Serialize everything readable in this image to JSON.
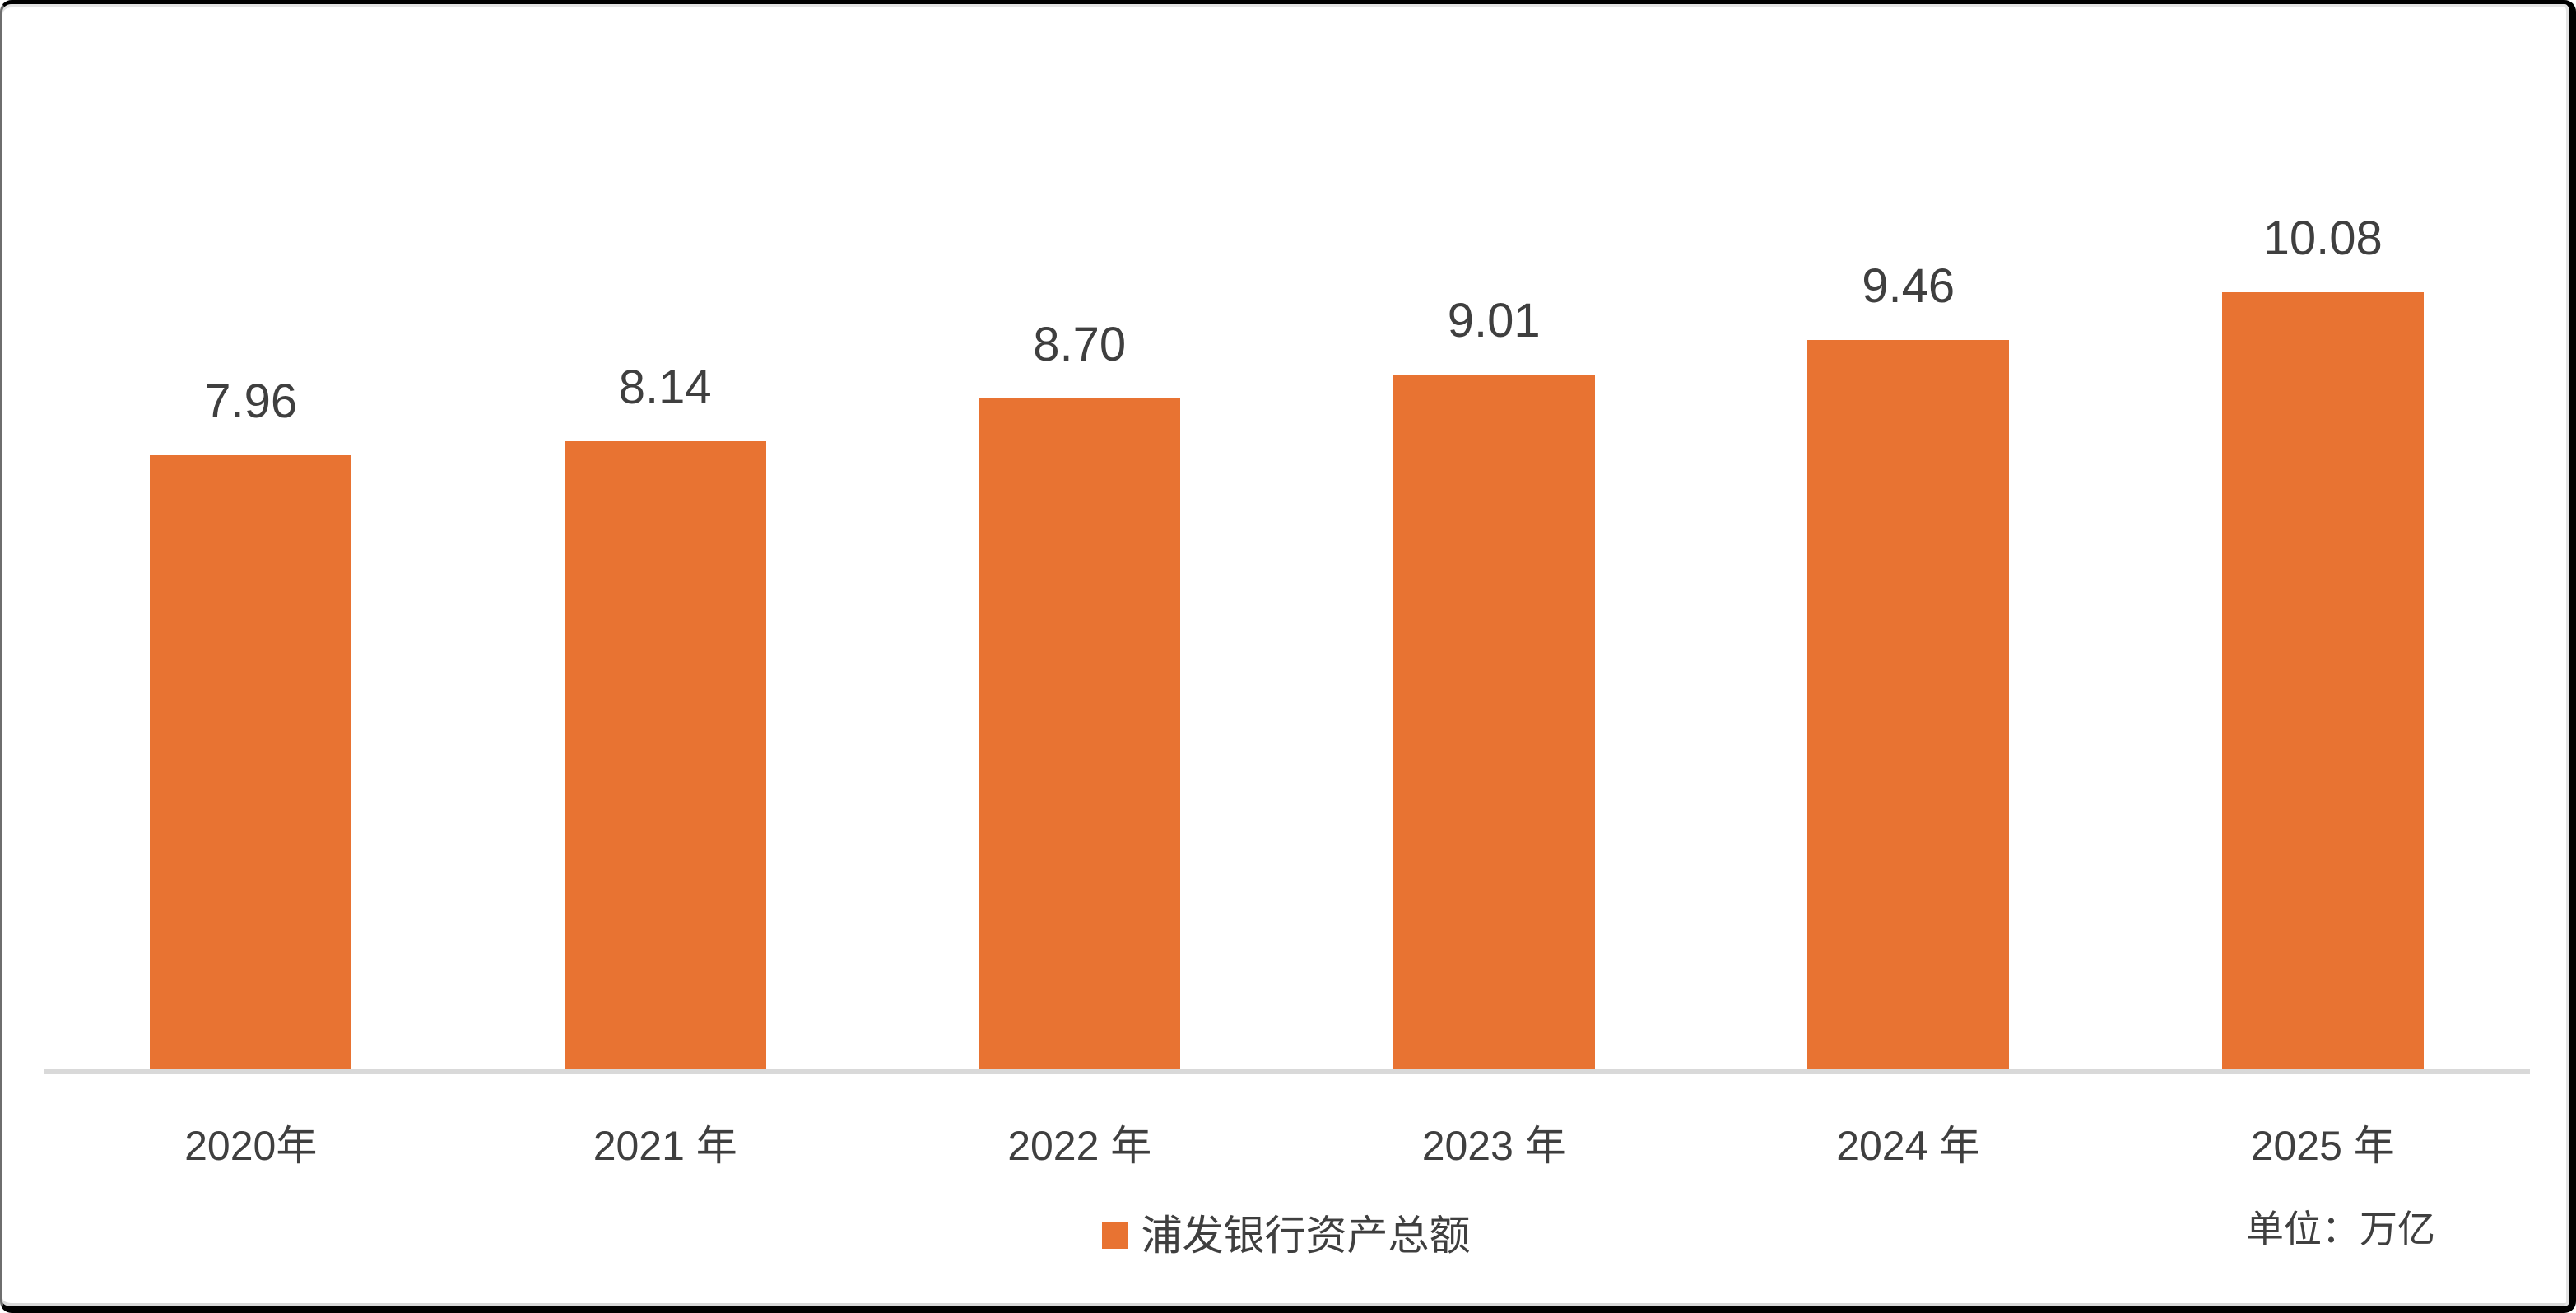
{
  "chart_data": {
    "type": "bar",
    "title": "",
    "categories": [
      "2020年",
      "2021 年",
      "2022 年",
      "2023 年",
      "2024 年",
      "2025 年"
    ],
    "series": [
      {
        "name": "浦发银行资产总额",
        "values": [
          7.96,
          8.14,
          8.7,
          9.01,
          9.46,
          10.08
        ],
        "labels": [
          "7.96",
          "8.14",
          "8.70",
          "9.01",
          "9.46",
          "10.08"
        ],
        "color": "#E87332"
      }
    ],
    "unit_note": "单位：万亿",
    "xlabel": "",
    "ylabel": "",
    "ylim": [
      0,
      10.8
    ],
    "grid": false,
    "data_labels": true,
    "legend_position": "bottom-center",
    "axis_line_color": "#D9D9D9",
    "text_color": "#3F3F3F",
    "background_color": "#FFFFFF"
  },
  "legend": {
    "label": "浦发银行资产总额"
  },
  "footer": {
    "unit_note": "单位：万亿"
  }
}
